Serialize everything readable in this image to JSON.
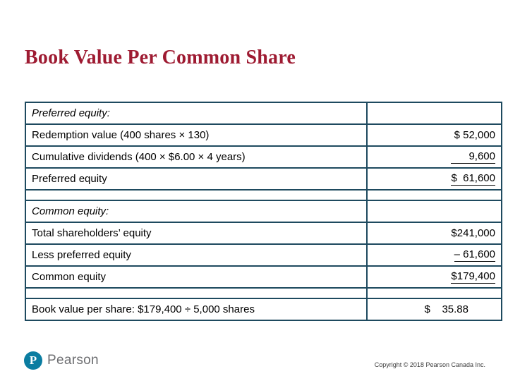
{
  "slide": {
    "title": "Book Value Per Common Share"
  },
  "table": {
    "rows": [
      {
        "label": "Preferred equity:",
        "value": ""
      },
      {
        "label": "Redemption value (400 shares × 130)",
        "value": "$ 52,000"
      },
      {
        "label": "Cumulative dividends (400 × $6.00 × 4 years)",
        "value": "      9,600"
      },
      {
        "label": "Preferred equity",
        "value": "$  61,600"
      },
      {
        "label": "",
        "value": ""
      },
      {
        "label": "Common equity:",
        "value": ""
      },
      {
        "label": "Total  shareholders’ equity",
        "value": "$241,000"
      },
      {
        "label": "Less preferred equity",
        "value": "– 61,600"
      },
      {
        "label": "Common equity",
        "value": "$179,400"
      },
      {
        "label": "",
        "value": ""
      },
      {
        "label": "Book value per share: $179,400 ÷ 5,000 shares",
        "value": "$    35.88"
      }
    ]
  },
  "footer": {
    "brand": "Pearson",
    "logo_letter": "P",
    "copyright": "Copyright © 2018 Pearson Canada Inc."
  },
  "colors": {
    "title": "#9E1B32",
    "table_border": "#1E4A5F",
    "brand_teal": "#0B7DA1",
    "brand_gray": "#6D6E71"
  }
}
